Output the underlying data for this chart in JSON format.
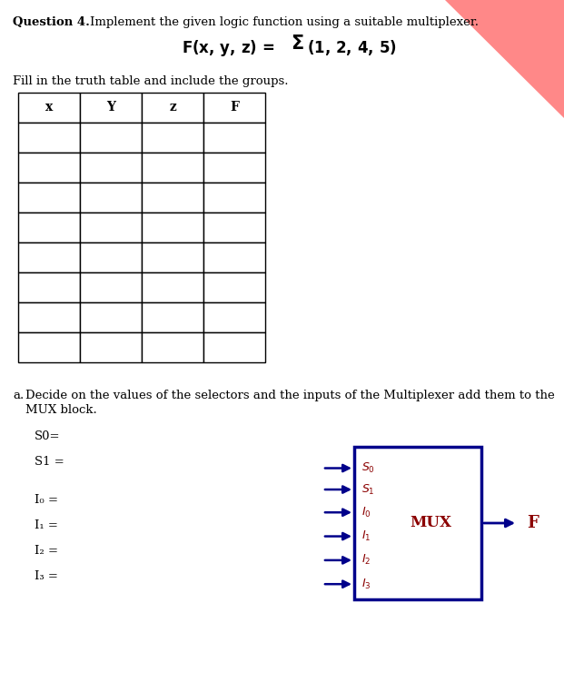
{
  "bg_color": "#ffffff",
  "text_color": "#000000",
  "table_border_color": "#000000",
  "mux_border_color": "#00008B",
  "mux_arrow_color": "#00008B",
  "mux_text_color": "#8B0000",
  "output_text_color": "#8B0000",
  "triangle_color": "#FF8888",
  "table_headers": [
    "x",
    "Y",
    "z",
    "F"
  ],
  "num_data_rows": 8,
  "title_bold": "Question 4.",
  "title_rest": "    Implement the given logic function using a suitable multiplexer.",
  "formula_left": "F(x, y, z) = ",
  "formula_sigma": "Σ",
  "formula_right": "(1, 2, 4, 5)",
  "fill_text": "Fill in the truth table and include the groups.",
  "part_a_line1": "Decide on the values of the selectors and the inputs of the Multiplexer add them to the",
  "part_a_line2": "MUX block.",
  "s0_label": "S0=",
  "s1_label": "S1 =",
  "i_labels": [
    "I₀ =",
    "I₁ =",
    "I₂ =",
    "I₃ ="
  ],
  "mux_pin_s": [
    "S₀",
    "S₁"
  ],
  "mux_pin_i": [
    "I₀",
    "I₁",
    "I₂",
    "I₃"
  ],
  "mux_label": "MUX",
  "output_label": "F"
}
